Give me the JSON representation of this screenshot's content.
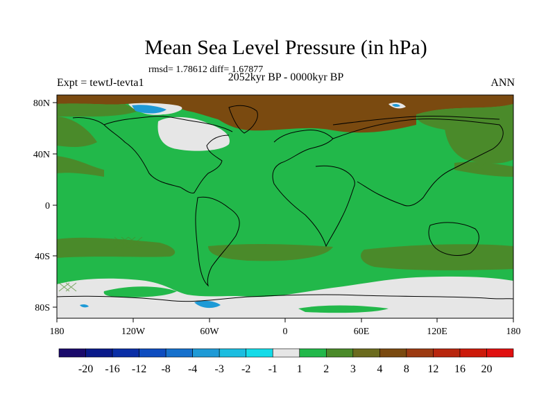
{
  "title": "Mean Sea Level Pressure (in hPa)",
  "stats": "rmsd= 1.78612 diff= 1.67877",
  "period": "2052kyr BP - 0000kyr BP",
  "experiment": "Expt = tewtJ-tevta1",
  "season": "ANN",
  "lat_labels": [
    "80N",
    "40N",
    "0",
    "40S",
    "80S"
  ],
  "lon_labels": [
    "180",
    "120W",
    "60W",
    "0",
    "60E",
    "120E",
    "180"
  ],
  "colorbar": {
    "labels": [
      "-20",
      "-16",
      "-12",
      "-8",
      "-4",
      "-3",
      "-2",
      "-1",
      "1",
      "2",
      "3",
      "4",
      "8",
      "12",
      "16",
      "20"
    ],
    "colors": [
      "#1a0a6b",
      "#0a1a8a",
      "#0a2ea6",
      "#0d4cbf",
      "#1570cc",
      "#1e9ad6",
      "#1bbde0",
      "#14dbe8",
      "#e6e6e6",
      "#22b84a",
      "#4a8a2a",
      "#6b6b1e",
      "#7a4a10",
      "#9c3a12",
      "#b8260e",
      "#cc1a0a",
      "#e01010"
    ]
  },
  "palette": {
    "ocean_green": "#22b84a",
    "land_green": "#22b84a",
    "olive": "#4a8a2a",
    "brown": "#7a4a10",
    "grey": "#e6e6e6",
    "light_blue": "#1e9ad6",
    "coast": "#000000"
  }
}
